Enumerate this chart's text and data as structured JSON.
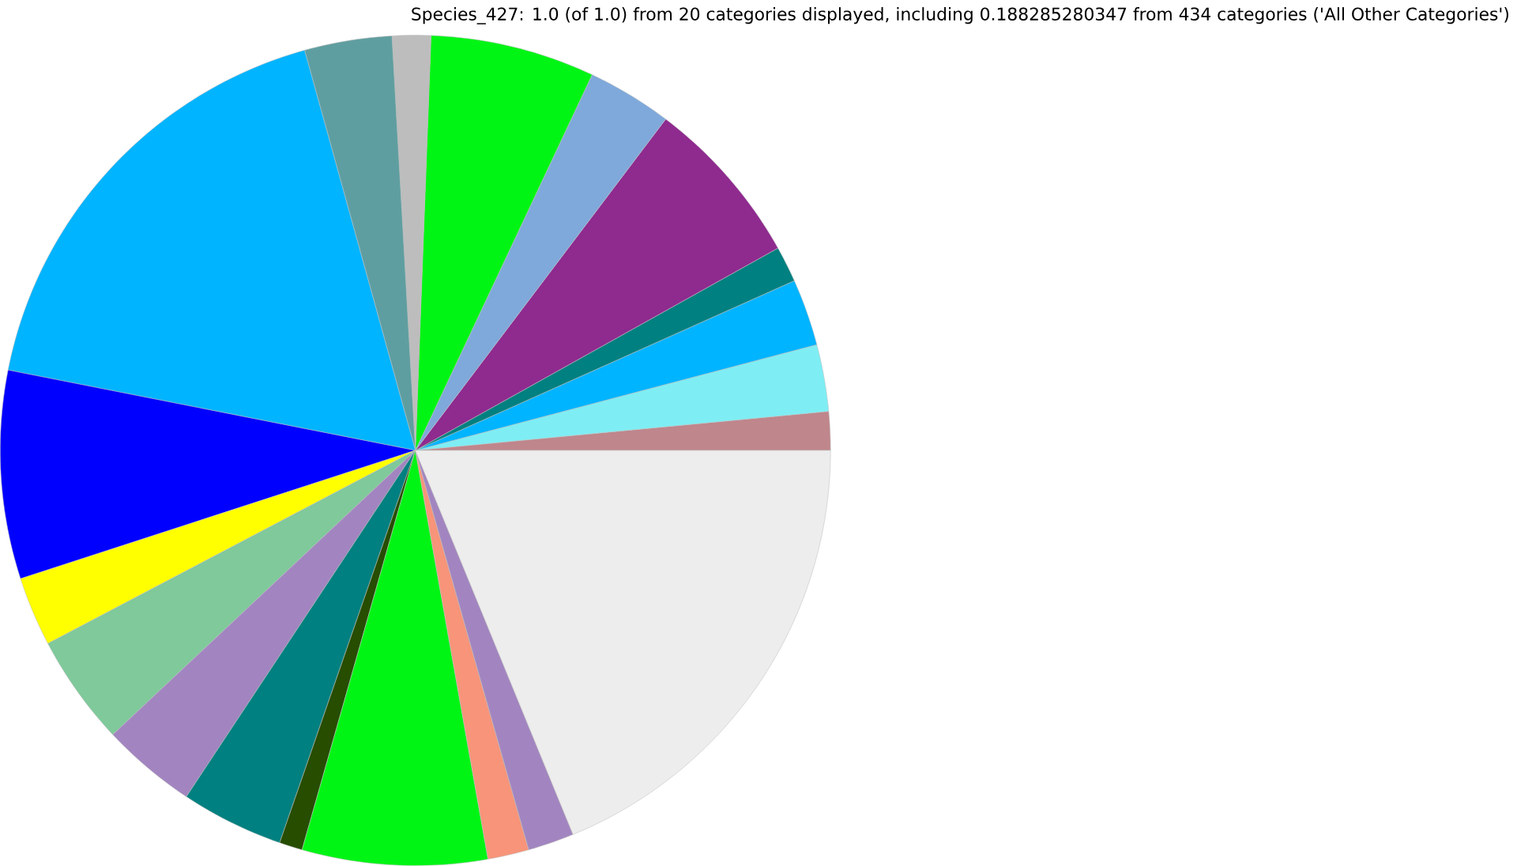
{
  "chart_data": {
    "type": "pie",
    "title": "Species_427: 1.0 (of 1.0) from 20 categories displayed, including 0.188285280347 from 434 categories ('All Other Categories')",
    "categories": [
      null,
      null,
      null,
      null,
      null,
      null,
      null,
      null,
      null,
      null,
      null,
      null,
      null,
      null,
      null,
      null,
      null,
      null,
      null,
      null
    ],
    "values": [
      1.5,
      2.6,
      2.6,
      1.4,
      6.6,
      3.3,
      6.4,
      1.5,
      3.4,
      17.6,
      8.1,
      2.7,
      4.3,
      3.7,
      4.0,
      0.9,
      7.2,
      1.6,
      1.8,
      18.8
    ],
    "colors": [
      "#bf868c",
      "#7eeef4",
      "#00b4ff",
      "#008080",
      "#8f2a8f",
      "#7fa9db",
      "#00f514",
      "#bdbdbd",
      "#5f9ea0",
      "#00b4ff",
      "#0000ff",
      "#ffff00",
      "#7fc99b",
      "#a285c0",
      "#008080",
      "#264d00",
      "#00f514",
      "#f79479",
      "#a285c0",
      "#ededed"
    ]
  }
}
